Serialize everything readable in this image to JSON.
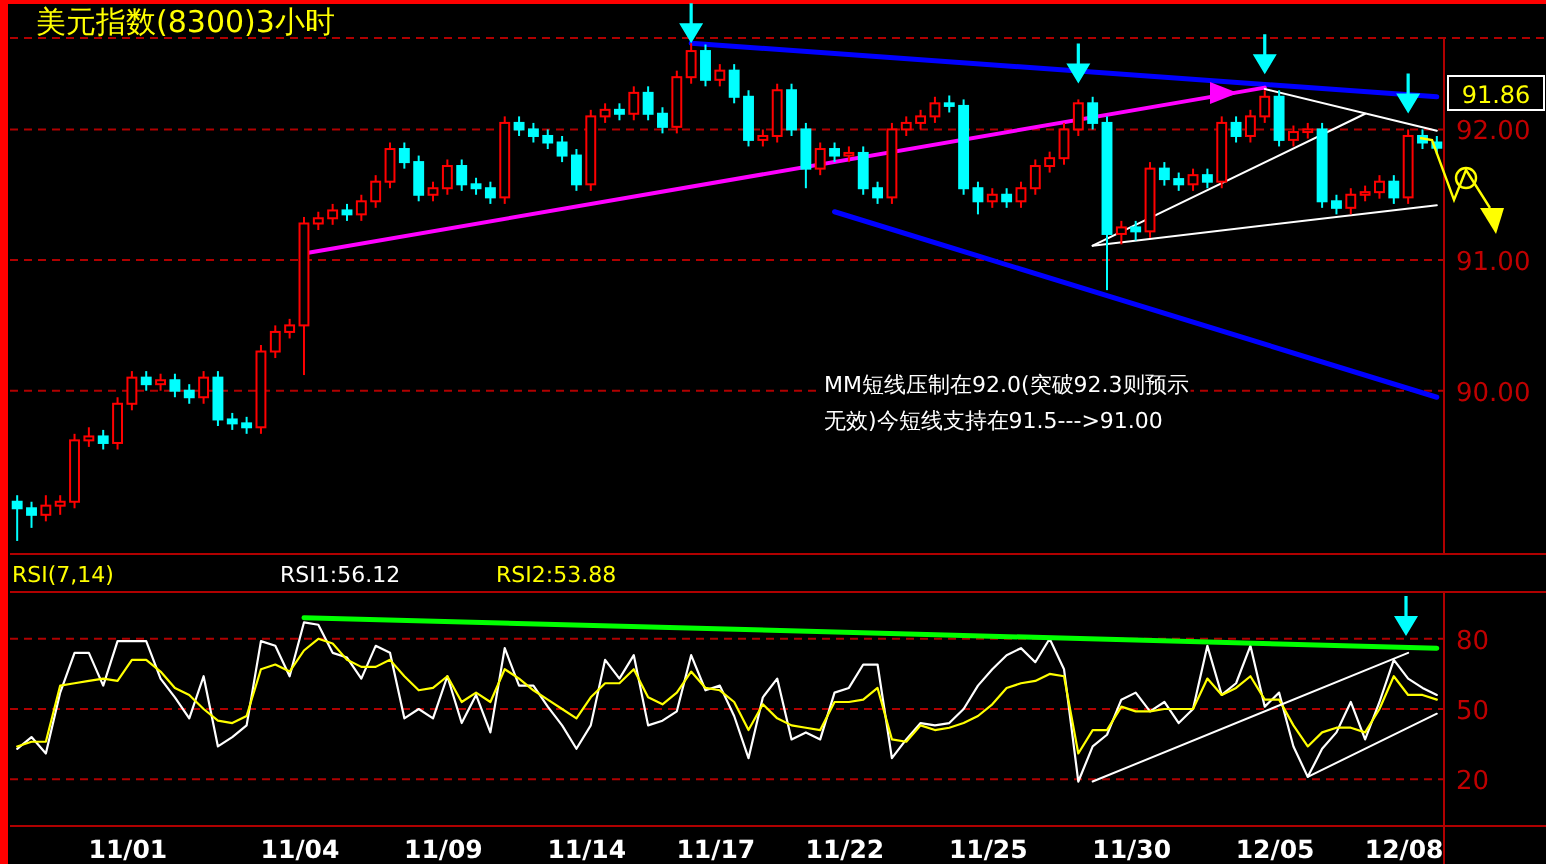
{
  "chart_data": [
    {
      "type": "candlestick",
      "title": "美元指数(8300)3小时",
      "annotations": [
        "MM短线压制在92.0(突破92.3则预示无效)今短线支持在91.5--->91.00",
        "91.86"
      ],
      "categories": [
        null,
        null,
        null,
        null,
        null,
        null,
        null,
        null,
        null,
        null,
        null,
        null,
        null,
        null,
        null,
        null,
        null,
        null,
        null,
        null,
        null,
        null,
        null,
        null,
        null,
        null,
        null,
        null,
        null,
        null,
        null,
        null,
        null,
        null,
        null,
        null,
        null,
        null,
        null,
        null,
        null,
        null,
        null,
        null,
        null,
        null,
        null,
        null,
        null,
        null,
        null,
        null,
        null,
        null,
        null,
        null,
        null,
        null,
        null,
        null,
        null,
        null,
        null,
        null,
        null,
        null,
        null,
        null,
        null,
        null,
        null,
        null,
        null,
        null,
        null,
        null,
        null,
        null,
        null,
        null,
        null,
        null,
        null,
        null,
        null,
        null,
        null,
        null,
        null,
        null,
        null,
        null,
        null,
        null,
        null,
        null,
        null,
        null,
        null,
        null
      ],
      "ohlc": [
        [
          89.15,
          89.2,
          88.85,
          89.1
        ],
        [
          89.1,
          89.15,
          88.95,
          89.05
        ],
        [
          89.05,
          89.2,
          89.0,
          89.12
        ],
        [
          89.12,
          89.2,
          89.05,
          89.15
        ],
        [
          89.15,
          89.67,
          89.1,
          89.62
        ],
        [
          89.62,
          89.72,
          89.57,
          89.65
        ],
        [
          89.65,
          89.7,
          89.55,
          89.6
        ],
        [
          89.6,
          89.95,
          89.55,
          89.9
        ],
        [
          89.9,
          90.15,
          89.85,
          90.1
        ],
        [
          90.1,
          90.15,
          90.0,
          90.05
        ],
        [
          90.05,
          90.13,
          90.0,
          90.08
        ],
        [
          90.08,
          90.13,
          89.95,
          90.0
        ],
        [
          90.0,
          90.05,
          89.9,
          89.95
        ],
        [
          89.95,
          90.15,
          89.9,
          90.1
        ],
        [
          90.1,
          90.15,
          89.73,
          89.78
        ],
        [
          89.78,
          89.83,
          89.7,
          89.75
        ],
        [
          89.75,
          89.8,
          89.67,
          89.72
        ],
        [
          89.72,
          90.35,
          89.67,
          90.3
        ],
        [
          90.3,
          90.5,
          90.25,
          90.45
        ],
        [
          90.45,
          90.55,
          90.4,
          90.5
        ],
        [
          90.5,
          91.33,
          90.12,
          91.28
        ],
        [
          91.28,
          91.37,
          91.23,
          91.32
        ],
        [
          91.32,
          91.43,
          91.27,
          91.38
        ],
        [
          91.38,
          91.43,
          91.3,
          91.35
        ],
        [
          91.35,
          91.5,
          91.3,
          91.45
        ],
        [
          91.45,
          91.65,
          91.4,
          91.6
        ],
        [
          91.6,
          91.9,
          91.55,
          91.85
        ],
        [
          91.85,
          91.9,
          91.7,
          91.75
        ],
        [
          91.75,
          91.8,
          91.45,
          91.5
        ],
        [
          91.5,
          91.6,
          91.45,
          91.55
        ],
        [
          91.55,
          91.77,
          91.5,
          91.72
        ],
        [
          91.72,
          91.77,
          91.53,
          91.58
        ],
        [
          91.58,
          91.63,
          91.5,
          91.55
        ],
        [
          91.55,
          91.6,
          91.43,
          91.48
        ],
        [
          91.48,
          92.1,
          91.43,
          92.05
        ],
        [
          92.05,
          92.1,
          91.95,
          92.0
        ],
        [
          92.0,
          92.05,
          91.9,
          91.95
        ],
        [
          91.95,
          92.0,
          91.85,
          91.9
        ],
        [
          91.9,
          91.95,
          91.75,
          91.8
        ],
        [
          91.8,
          91.85,
          91.53,
          91.58
        ],
        [
          91.58,
          92.15,
          91.53,
          92.1
        ],
        [
          92.1,
          92.2,
          92.05,
          92.15
        ],
        [
          92.15,
          92.2,
          92.07,
          92.12
        ],
        [
          92.12,
          92.33,
          92.07,
          92.28
        ],
        [
          92.28,
          92.33,
          92.07,
          92.12
        ],
        [
          92.12,
          92.17,
          91.97,
          92.02
        ],
        [
          92.02,
          92.45,
          91.97,
          92.4
        ],
        [
          92.4,
          92.66,
          92.35,
          92.6
        ],
        [
          92.6,
          92.65,
          92.33,
          92.38
        ],
        [
          92.38,
          92.5,
          92.33,
          92.45
        ],
        [
          92.45,
          92.5,
          92.2,
          92.25
        ],
        [
          92.25,
          92.3,
          91.87,
          91.92
        ],
        [
          91.92,
          92.0,
          91.87,
          91.95
        ],
        [
          91.95,
          92.35,
          91.9,
          92.3
        ],
        [
          92.3,
          92.35,
          91.95,
          92.0
        ],
        [
          92.0,
          92.05,
          91.55,
          91.7
        ],
        [
          91.7,
          91.9,
          91.65,
          91.85
        ],
        [
          91.85,
          91.9,
          91.75,
          91.8
        ],
        [
          91.8,
          91.87,
          91.75,
          91.82
        ],
        [
          91.82,
          91.87,
          91.5,
          91.55
        ],
        [
          91.55,
          91.6,
          91.43,
          91.48
        ],
        [
          91.48,
          92.05,
          91.43,
          92.0
        ],
        [
          92.0,
          92.1,
          91.95,
          92.05
        ],
        [
          92.05,
          92.15,
          92.0,
          92.1
        ],
        [
          92.1,
          92.25,
          92.05,
          92.2
        ],
        [
          92.2,
          92.26,
          92.13,
          92.18
        ],
        [
          92.18,
          92.23,
          91.5,
          91.55
        ],
        [
          91.55,
          91.6,
          91.35,
          91.45
        ],
        [
          91.45,
          91.55,
          91.4,
          91.5
        ],
        [
          91.5,
          91.55,
          91.4,
          91.45
        ],
        [
          91.45,
          91.6,
          91.4,
          91.55
        ],
        [
          91.55,
          91.77,
          91.5,
          91.72
        ],
        [
          91.72,
          91.83,
          91.67,
          91.78
        ],
        [
          91.78,
          92.05,
          91.73,
          92.0
        ],
        [
          92.0,
          92.23,
          91.95,
          92.2
        ],
        [
          92.2,
          92.25,
          92.0,
          92.05
        ],
        [
          92.05,
          92.1,
          90.77,
          91.2
        ],
        [
          91.2,
          91.3,
          91.12,
          91.25
        ],
        [
          91.25,
          91.3,
          91.15,
          91.22
        ],
        [
          91.22,
          91.75,
          91.17,
          91.7
        ],
        [
          91.7,
          91.75,
          91.57,
          91.62
        ],
        [
          91.62,
          91.67,
          91.53,
          91.58
        ],
        [
          91.58,
          91.7,
          91.53,
          91.65
        ],
        [
          91.65,
          91.7,
          91.55,
          91.6
        ],
        [
          91.6,
          92.1,
          91.55,
          92.05
        ],
        [
          92.05,
          92.1,
          91.9,
          91.95
        ],
        [
          91.95,
          92.15,
          91.9,
          92.1
        ],
        [
          92.1,
          92.3,
          92.05,
          92.25
        ],
        [
          92.25,
          92.3,
          91.87,
          91.92
        ],
        [
          91.92,
          92.03,
          91.87,
          91.98
        ],
        [
          91.98,
          92.05,
          91.93,
          92.0
        ],
        [
          92.0,
          92.05,
          91.4,
          91.45
        ],
        [
          91.45,
          91.5,
          91.35,
          91.4
        ],
        [
          91.4,
          91.55,
          91.35,
          91.5
        ],
        [
          91.5,
          91.57,
          91.45,
          91.52
        ],
        [
          91.52,
          91.65,
          91.47,
          91.6
        ],
        [
          91.6,
          91.65,
          91.43,
          91.48
        ],
        [
          91.48,
          92.0,
          91.43,
          91.95
        ],
        [
          91.95,
          92.0,
          91.85,
          91.9
        ],
        [
          91.9,
          91.95,
          91.81,
          91.86
        ]
      ],
      "colors": [
        "#00ffff",
        "#00ffff",
        "#ff0000",
        "#ff0000",
        "#ff0000",
        "#ff0000",
        "#00ffff",
        "#ff0000",
        "#ff0000",
        "#00ffff",
        "#ff0000",
        "#00ffff",
        "#00ffff",
        "#ff0000",
        "#00ffff",
        "#00ffff",
        "#00ffff",
        "#ff0000",
        "#ff0000",
        "#ff0000",
        "#ff0000",
        "#ff0000",
        "#ff0000",
        "#00ffff",
        "#ff0000",
        "#ff0000",
        "#ff0000",
        "#00ffff",
        "#00ffff",
        "#ff0000",
        "#ff0000",
        "#00ffff",
        "#00ffff",
        "#00ffff",
        "#ff0000",
        "#00ffff",
        "#00ffff",
        "#00ffff",
        "#00ffff",
        "#00ffff",
        "#ff0000",
        "#ff0000",
        "#00ffff",
        "#ff0000",
        "#00ffff",
        "#00ffff",
        "#ff0000",
        "#ff0000",
        "#00ffff",
        "#ff0000",
        "#00ffff",
        "#00ffff",
        "#ff0000",
        "#ff0000",
        "#00ffff",
        "#00ffff",
        "#ff0000",
        "#00ffff",
        "#ff0000",
        "#00ffff",
        "#00ffff",
        "#ff0000",
        "#ff0000",
        "#ff0000",
        "#ff0000",
        "#00ffff",
        "#00ffff",
        "#00ffff",
        "#ff0000",
        "#00ffff",
        "#ff0000",
        "#ff0000",
        "#ff0000",
        "#ff0000",
        "#ff0000",
        "#00ffff",
        "#00ffff",
        "#ff0000",
        "#00ffff",
        "#ff0000",
        "#00ffff",
        "#00ffff",
        "#ff0000",
        "#00ffff",
        "#ff0000",
        "#00ffff",
        "#ff0000",
        "#ff0000",
        "#00ffff",
        "#ff0000",
        "#ff0000",
        "#00ffff",
        "#00ffff",
        "#ff0000",
        "#ff0000",
        "#ff0000",
        "#00ffff",
        "#ff0000",
        "#00ffff",
        "#00ffff"
      ],
      "series": [
        {
          "type": "line",
          "color": "#0000ff",
          "values": [
            null,
            null,
            null,
            null,
            null,
            null,
            null,
            null,
            null,
            null,
            null,
            null,
            null,
            null,
            null,
            null,
            null,
            null,
            null,
            null,
            null,
            null,
            null,
            null,
            null,
            null,
            null,
            null,
            null,
            null,
            null,
            null,
            null,
            null,
            null,
            null,
            null,
            null,
            null,
            null,
            null,
            null,
            null,
            null,
            null,
            null,
            null,
            92.66,
            null,
            null,
            null,
            null,
            null,
            null,
            null,
            null,
            null,
            null,
            null,
            null,
            null,
            null,
            null,
            null,
            null,
            null,
            null,
            null,
            null,
            null,
            null,
            null,
            null,
            null,
            null,
            null,
            null,
            null,
            null,
            null,
            null,
            null,
            null,
            null,
            null,
            null,
            null,
            null,
            null,
            null,
            null,
            null,
            null,
            null,
            null,
            null,
            null,
            null,
            null,
            92.25
          ]
        },
        {
          "type": "line",
          "color": "#0000ff",
          "values": [
            null,
            null,
            null,
            null,
            null,
            null,
            null,
            null,
            null,
            null,
            null,
            null,
            null,
            null,
            null,
            null,
            null,
            null,
            null,
            null,
            null,
            null,
            null,
            null,
            null,
            null,
            null,
            null,
            null,
            null,
            null,
            null,
            null,
            null,
            null,
            null,
            null,
            null,
            null,
            null,
            null,
            null,
            null,
            null,
            null,
            null,
            null,
            null,
            null,
            null,
            null,
            null,
            null,
            null,
            null,
            null,
            null,
            91.37,
            null,
            null,
            null,
            null,
            null,
            null,
            null,
            null,
            null,
            null,
            null,
            null,
            null,
            null,
            null,
            null,
            null,
            null,
            null,
            null,
            null,
            null,
            null,
            null,
            null,
            null,
            null,
            null,
            null,
            null,
            null,
            null,
            null,
            null,
            null,
            null,
            null,
            null,
            null,
            null,
            null,
            89.95
          ]
        },
        {
          "type": "line",
          "color": "#ff00ff",
          "values": [
            null,
            null,
            null,
            null,
            null,
            null,
            null,
            null,
            null,
            null,
            null,
            null,
            null,
            null,
            null,
            null,
            null,
            null,
            null,
            null,
            91.05,
            null,
            null,
            null,
            null,
            null,
            null,
            null,
            null,
            null,
            null,
            null,
            null,
            null,
            null,
            null,
            null,
            null,
            null,
            null,
            null,
            null,
            null,
            null,
            null,
            null,
            null,
            null,
            null,
            null,
            null,
            null,
            null,
            null,
            null,
            null,
            null,
            null,
            null,
            null,
            null,
            null,
            null,
            null,
            null,
            null,
            null,
            null,
            null,
            null,
            null,
            null,
            null,
            null,
            null,
            null,
            null,
            null,
            null,
            null,
            null,
            null,
            null,
            null,
            null,
            null,
            null,
            92.32,
            null,
            null,
            null,
            null,
            null,
            null,
            null,
            null,
            null,
            null,
            null,
            null
          ]
        },
        {
          "type": "line",
          "color": "#ffffff",
          "values": [
            null,
            null,
            null,
            null,
            null,
            null,
            null,
            null,
            null,
            null,
            null,
            null,
            null,
            null,
            null,
            null,
            null,
            null,
            null,
            null,
            null,
            null,
            null,
            null,
            null,
            null,
            null,
            null,
            null,
            null,
            null,
            null,
            null,
            null,
            null,
            null,
            null,
            null,
            null,
            null,
            null,
            null,
            null,
            null,
            null,
            null,
            null,
            null,
            null,
            null,
            null,
            null,
            null,
            null,
            null,
            null,
            null,
            null,
            null,
            null,
            null,
            null,
            null,
            null,
            null,
            null,
            null,
            null,
            null,
            null,
            null,
            null,
            null,
            null,
            null,
            91.11,
            null,
            null,
            null,
            null,
            null,
            null,
            null,
            null,
            null,
            null,
            null,
            null,
            null,
            null,
            null,
            null,
            null,
            null,
            92.12,
            null,
            null,
            null,
            null,
            null
          ]
        },
        {
          "type": "line",
          "color": "#ffffff",
          "values": [
            null,
            null,
            null,
            null,
            null,
            null,
            null,
            null,
            null,
            null,
            null,
            null,
            null,
            null,
            null,
            null,
            null,
            null,
            null,
            null,
            null,
            null,
            null,
            null,
            null,
            null,
            null,
            null,
            null,
            null,
            null,
            null,
            null,
            null,
            null,
            null,
            null,
            null,
            null,
            null,
            null,
            null,
            null,
            null,
            null,
            null,
            null,
            null,
            null,
            null,
            null,
            null,
            null,
            null,
            null,
            null,
            null,
            null,
            null,
            null,
            null,
            null,
            null,
            null,
            null,
            null,
            null,
            null,
            null,
            null,
            null,
            null,
            null,
            null,
            null,
            null,
            null,
            null,
            null,
            null,
            null,
            null,
            null,
            null,
            null,
            null,
            null,
            92.31,
            null,
            null,
            null,
            null,
            null,
            null,
            null,
            null,
            null,
            null,
            null,
            91.99
          ]
        },
        {
          "type": "line",
          "color": "#ffffff",
          "values": [
            null,
            null,
            null,
            null,
            null,
            null,
            null,
            null,
            null,
            null,
            null,
            null,
            null,
            null,
            null,
            null,
            null,
            null,
            null,
            null,
            null,
            null,
            null,
            null,
            null,
            null,
            null,
            null,
            null,
            null,
            null,
            null,
            null,
            null,
            null,
            null,
            null,
            null,
            null,
            null,
            null,
            null,
            null,
            null,
            null,
            null,
            null,
            null,
            null,
            null,
            null,
            null,
            null,
            null,
            null,
            null,
            null,
            null,
            null,
            null,
            null,
            null,
            null,
            null,
            null,
            null,
            null,
            null,
            null,
            null,
            null,
            null,
            null,
            null,
            null,
            91.11,
            null,
            null,
            null,
            null,
            null,
            null,
            null,
            null,
            null,
            null,
            null,
            null,
            null,
            null,
            null,
            null,
            null,
            null,
            null,
            null,
            null,
            null,
            null,
            91.42
          ]
        }
      ],
      "ylim": [
        88.75,
        92.7
      ],
      "yticks": [
        {
          "value": 92,
          "label": "92.00"
        },
        {
          "value": 91,
          "label": "91.00"
        },
        {
          "value": 90,
          "label": "90.00"
        }
      ],
      "grid": "y",
      "tick_labels": "y"
    },
    {
      "type": "line",
      "title": "RSI(7,14)",
      "legend": "top",
      "categories": [
        null,
        null,
        null,
        null,
        null,
        null,
        null,
        null,
        "11/01",
        null,
        null,
        null,
        null,
        null,
        null,
        null,
        null,
        null,
        null,
        null,
        "11/04",
        null,
        null,
        null,
        null,
        null,
        null,
        null,
        null,
        null,
        "11/09",
        null,
        null,
        null,
        null,
        null,
        null,
        null,
        null,
        null,
        "11/14",
        null,
        null,
        null,
        null,
        null,
        null,
        null,
        null,
        "11/17",
        null,
        null,
        null,
        null,
        null,
        null,
        null,
        null,
        "11/22",
        null,
        null,
        null,
        null,
        null,
        null,
        null,
        null,
        null,
        "11/25",
        null,
        null,
        null,
        null,
        null,
        null,
        null,
        null,
        null,
        "11/30",
        null,
        null,
        null,
        null,
        null,
        null,
        null,
        null,
        null,
        "12/05",
        null,
        null,
        null,
        null,
        null,
        null,
        null,
        null,
        "12/08",
        null,
        null
      ],
      "series": [
        {
          "name": "RSI1:56.12",
          "color": "#ffffff",
          "values": [
            33,
            38,
            31,
            57,
            74,
            74,
            60,
            79,
            79,
            79,
            63,
            55,
            46,
            64,
            34,
            38,
            43,
            79,
            77,
            64,
            87,
            86,
            74,
            72,
            63,
            77,
            74,
            46,
            50,
            46,
            64,
            44,
            56,
            40,
            76,
            60,
            60,
            51,
            43,
            33,
            43,
            71,
            63,
            73,
            43,
            45,
            49,
            73,
            58,
            60,
            47,
            29,
            55,
            63,
            37,
            40,
            37,
            57,
            59,
            69,
            69,
            29,
            37,
            44,
            43,
            44,
            50,
            60,
            67,
            73,
            76,
            70,
            80,
            67,
            19,
            34,
            39,
            54,
            57,
            49,
            53,
            44,
            50,
            77,
            56,
            61,
            77,
            51,
            57,
            34,
            21,
            33,
            40,
            53,
            37,
            53,
            71,
            63,
            59,
            56
          ]
        },
        {
          "name": "RSI2:53.88",
          "color": "#ffff00",
          "values": [
            34,
            36,
            36,
            60,
            61,
            62,
            63,
            62,
            71,
            71,
            66,
            59,
            56,
            50,
            45,
            44,
            47,
            67,
            69,
            66,
            75,
            80,
            78,
            71,
            68,
            68,
            71,
            64,
            58,
            59,
            64,
            53,
            57,
            53,
            67,
            63,
            58,
            54,
            50,
            46,
            55,
            61,
            61,
            67,
            55,
            52,
            57,
            66,
            59,
            58,
            53,
            41,
            52,
            46,
            43,
            42,
            41,
            53,
            53,
            54,
            59,
            37,
            36,
            43,
            41,
            42,
            44,
            47,
            52,
            59,
            61,
            62,
            65,
            64,
            31,
            41,
            41,
            51,
            49,
            49,
            50,
            50,
            50,
            63,
            56,
            59,
            64,
            54,
            54,
            43,
            34,
            40,
            42,
            42,
            40,
            50,
            64,
            56,
            56,
            54
          ]
        },
        {
          "color": "#00ff00",
          "values": [
            null,
            null,
            null,
            null,
            null,
            null,
            null,
            null,
            null,
            null,
            null,
            null,
            null,
            null,
            null,
            null,
            null,
            null,
            null,
            null,
            89,
            null,
            null,
            null,
            null,
            null,
            null,
            null,
            null,
            null,
            null,
            null,
            null,
            null,
            null,
            null,
            null,
            null,
            null,
            null,
            null,
            null,
            null,
            null,
            null,
            null,
            null,
            null,
            null,
            null,
            null,
            null,
            null,
            null,
            null,
            null,
            null,
            null,
            null,
            null,
            null,
            null,
            null,
            null,
            null,
            null,
            null,
            null,
            null,
            null,
            null,
            null,
            null,
            null,
            null,
            null,
            null,
            null,
            null,
            null,
            null,
            null,
            null,
            null,
            null,
            null,
            null,
            null,
            null,
            null,
            null,
            null,
            null,
            null,
            null,
            null,
            null,
            null,
            null,
            76
          ]
        },
        {
          "color": "#ffffff",
          "values": [
            null,
            null,
            null,
            null,
            null,
            null,
            null,
            null,
            null,
            null,
            null,
            null,
            null,
            null,
            null,
            null,
            null,
            null,
            null,
            null,
            null,
            null,
            null,
            null,
            null,
            null,
            null,
            null,
            null,
            null,
            null,
            null,
            null,
            null,
            null,
            null,
            null,
            null,
            null,
            null,
            null,
            null,
            null,
            null,
            null,
            null,
            null,
            null,
            null,
            null,
            null,
            null,
            null,
            null,
            null,
            null,
            null,
            null,
            null,
            null,
            null,
            null,
            null,
            null,
            null,
            null,
            null,
            null,
            null,
            null,
            null,
            null,
            null,
            null,
            null,
            19,
            null,
            null,
            null,
            null,
            null,
            null,
            null,
            null,
            null,
            null,
            null,
            null,
            null,
            null,
            null,
            null,
            null,
            null,
            null,
            null,
            null,
            74,
            null,
            null
          ]
        },
        {
          "color": "#ffffff",
          "values": [
            null,
            null,
            null,
            null,
            null,
            null,
            null,
            null,
            null,
            null,
            null,
            null,
            null,
            null,
            null,
            null,
            null,
            null,
            null,
            null,
            null,
            null,
            null,
            null,
            null,
            null,
            null,
            null,
            null,
            null,
            null,
            null,
            null,
            null,
            null,
            null,
            null,
            null,
            null,
            null,
            null,
            null,
            null,
            null,
            null,
            null,
            null,
            null,
            null,
            null,
            null,
            null,
            null,
            null,
            null,
            null,
            null,
            null,
            null,
            null,
            null,
            null,
            null,
            null,
            null,
            null,
            null,
            null,
            null,
            null,
            null,
            null,
            null,
            null,
            null,
            null,
            null,
            null,
            null,
            null,
            null,
            null,
            null,
            null,
            null,
            null,
            null,
            null,
            null,
            null,
            21,
            null,
            null,
            null,
            null,
            null,
            null,
            null,
            null,
            48
          ]
        }
      ],
      "ylim": [
        0,
        100
      ],
      "yticks": [
        20,
        50,
        80
      ],
      "grid": "y"
    }
  ]
}
